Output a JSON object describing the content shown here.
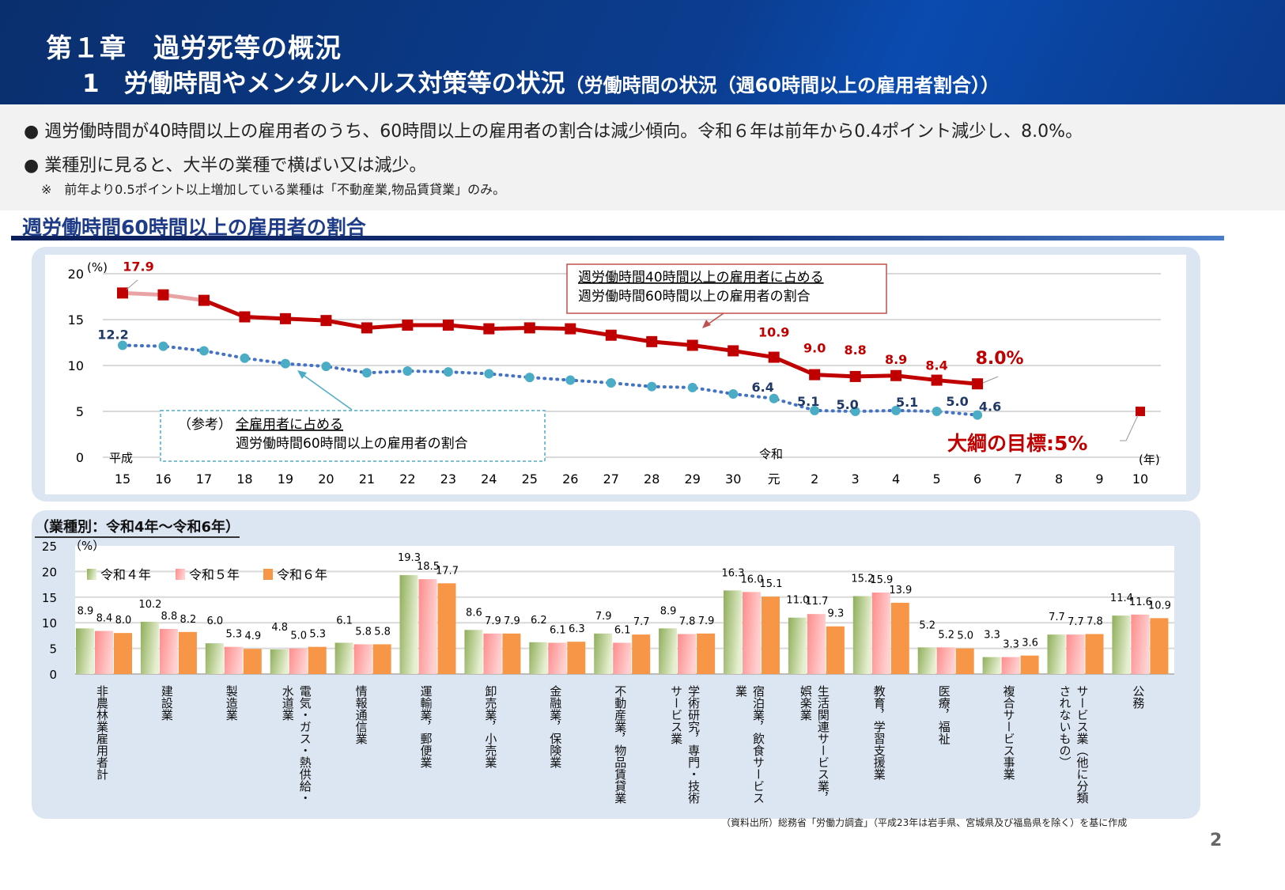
{
  "header": {
    "chapter": "第１章　過労死等の概況",
    "title": "1　労働時間やメンタルヘルス対策等の状況",
    "subtitle": "（労働時間の状況（週60時間以上の雇用者割合））"
  },
  "bullets": [
    "週労働時間が40時間以上の雇用者のうち、60時間以上の雇用者の割合は減少傾向。令和６年は前年から0.4ポイント減少し、8.0%。",
    "業種別に見ると、大半の業種で横ばい又は減少。"
  ],
  "bullet_note": "※　前年より0.5ポイント以上増加している業種は「不動産業,物品賃貸業」のみ。",
  "section_title": "週労働時間60時間以上の雇用者の割合",
  "source": "（資料出所）総務省「労働力調査」（平成23年は岩手県、宮城県及び福島県を除く）を基に作成",
  "page_number": "2",
  "chart_data": [
    {
      "type": "line",
      "ylabel": "(%)",
      "xlabel": "(年)",
      "era_labels": {
        "heisei": "平成",
        "reiwa": "令和"
      },
      "ylim": [
        0,
        20
      ],
      "yticks": [
        0,
        5,
        10,
        15,
        20
      ],
      "grid": true,
      "categories": [
        "15",
        "16",
        "17",
        "18",
        "19",
        "20",
        "21",
        "22",
        "23",
        "24",
        "25",
        "26",
        "27",
        "28",
        "29",
        "30",
        "元",
        "2",
        "3",
        "4",
        "5",
        "6",
        "7",
        "8",
        "9",
        "10"
      ],
      "series": [
        {
          "name": "週労働時間40時間以上の雇用者に占める週労働時間60時間以上の雇用者の割合",
          "color": "#c00000",
          "values": [
            17.9,
            17.7,
            17.1,
            15.3,
            15.1,
            14.9,
            14.1,
            14.4,
            14.4,
            14.0,
            14.1,
            14.0,
            13.3,
            12.6,
            12.2,
            11.6,
            10.9,
            9.0,
            8.8,
            8.9,
            8.4,
            8.0,
            null,
            null,
            null,
            null
          ]
        },
        {
          "name": "（参考）全雇用者に占める週労働時間60時間以上の雇用者の割合",
          "color": "#4bacc6",
          "values": [
            12.2,
            12.1,
            11.6,
            10.8,
            10.2,
            9.9,
            9.2,
            9.4,
            9.3,
            9.1,
            8.7,
            8.4,
            8.1,
            7.7,
            7.6,
            6.9,
            6.4,
            5.1,
            5.0,
            5.1,
            5.0,
            4.6,
            null,
            null,
            null,
            null
          ]
        }
      ],
      "data_labels": {
        "red": [
          {
            "i": 0,
            "text": "17.9"
          },
          {
            "i": 16,
            "text": "10.9"
          },
          {
            "i": 17,
            "text": "9.0"
          },
          {
            "i": 18,
            "text": "8.8"
          },
          {
            "i": 19,
            "text": "8.9"
          },
          {
            "i": 20,
            "text": "8.4"
          },
          {
            "i": 21,
            "text": "8.0%"
          }
        ],
        "blue": [
          {
            "i": 0,
            "text": "12.2"
          },
          {
            "i": 16,
            "text": "6.4"
          },
          {
            "i": 17,
            "text": "5.1"
          },
          {
            "i": 18,
            "text": "5.0"
          },
          {
            "i": 19,
            "text": "5.1"
          },
          {
            "i": 20,
            "text": "5.0"
          },
          {
            "i": 21,
            "text": "4.6"
          }
        ]
      },
      "target": {
        "i": 25,
        "value": 5,
        "label": "大綱の目標:5%"
      },
      "callouts": {
        "red": [
          "週労働時間40時間以上の雇用者に占める",
          "週労働時間60時間以上の雇用者の割合"
        ],
        "blue_prefix": "（参考）",
        "blue": [
          "全雇用者に占める",
          "週労働時間60時間以上の雇用者の割合"
        ]
      }
    },
    {
      "type": "bar",
      "title": "（業種別：令和4年～令和6年）",
      "ylabel": "（%）",
      "ylim": [
        0,
        25
      ],
      "yticks": [
        0,
        5,
        10,
        15,
        20,
        25
      ],
      "grid": true,
      "legend_position": "top-left",
      "categories": [
        "非農林業雇用者計",
        "建設業",
        "製造業",
        "電気・ガス・熱供給・\n水道業",
        "情報通信業",
        "運輸業，郵便業",
        "卸売業，小売業",
        "金融業，保険業",
        "不動産業，物品賃貸業",
        "学術研究，専門・技術\nサービス業",
        "宿泊業，飲食サービス\n業",
        "生活関連サービス業，\n娯楽業",
        "教育，学習支援業",
        "医療，福祉",
        "複合サービス事業",
        "サービス業（他に分類\nされないもの）",
        "公務"
      ],
      "series": [
        {
          "name": "令和４年",
          "color": "#8fae5a",
          "values": [
            8.9,
            10.2,
            6.0,
            4.8,
            6.1,
            19.3,
            8.6,
            6.2,
            7.9,
            8.9,
            16.3,
            11.0,
            15.2,
            5.2,
            3.3,
            7.7,
            11.4
          ]
        },
        {
          "name": "令和５年",
          "color": "#ff8c8c",
          "values": [
            8.4,
            8.8,
            5.3,
            5.0,
            5.8,
            18.5,
            7.9,
            6.1,
            6.1,
            7.8,
            16.0,
            11.7,
            15.9,
            5.2,
            3.3,
            7.7,
            11.6
          ]
        },
        {
          "name": "令和６年",
          "color": "#f79646",
          "values": [
            8.0,
            8.2,
            4.9,
            5.3,
            5.8,
            17.7,
            7.9,
            6.3,
            7.7,
            7.9,
            15.1,
            9.3,
            13.9,
            5.0,
            3.6,
            7.8,
            10.9
          ]
        }
      ]
    }
  ]
}
